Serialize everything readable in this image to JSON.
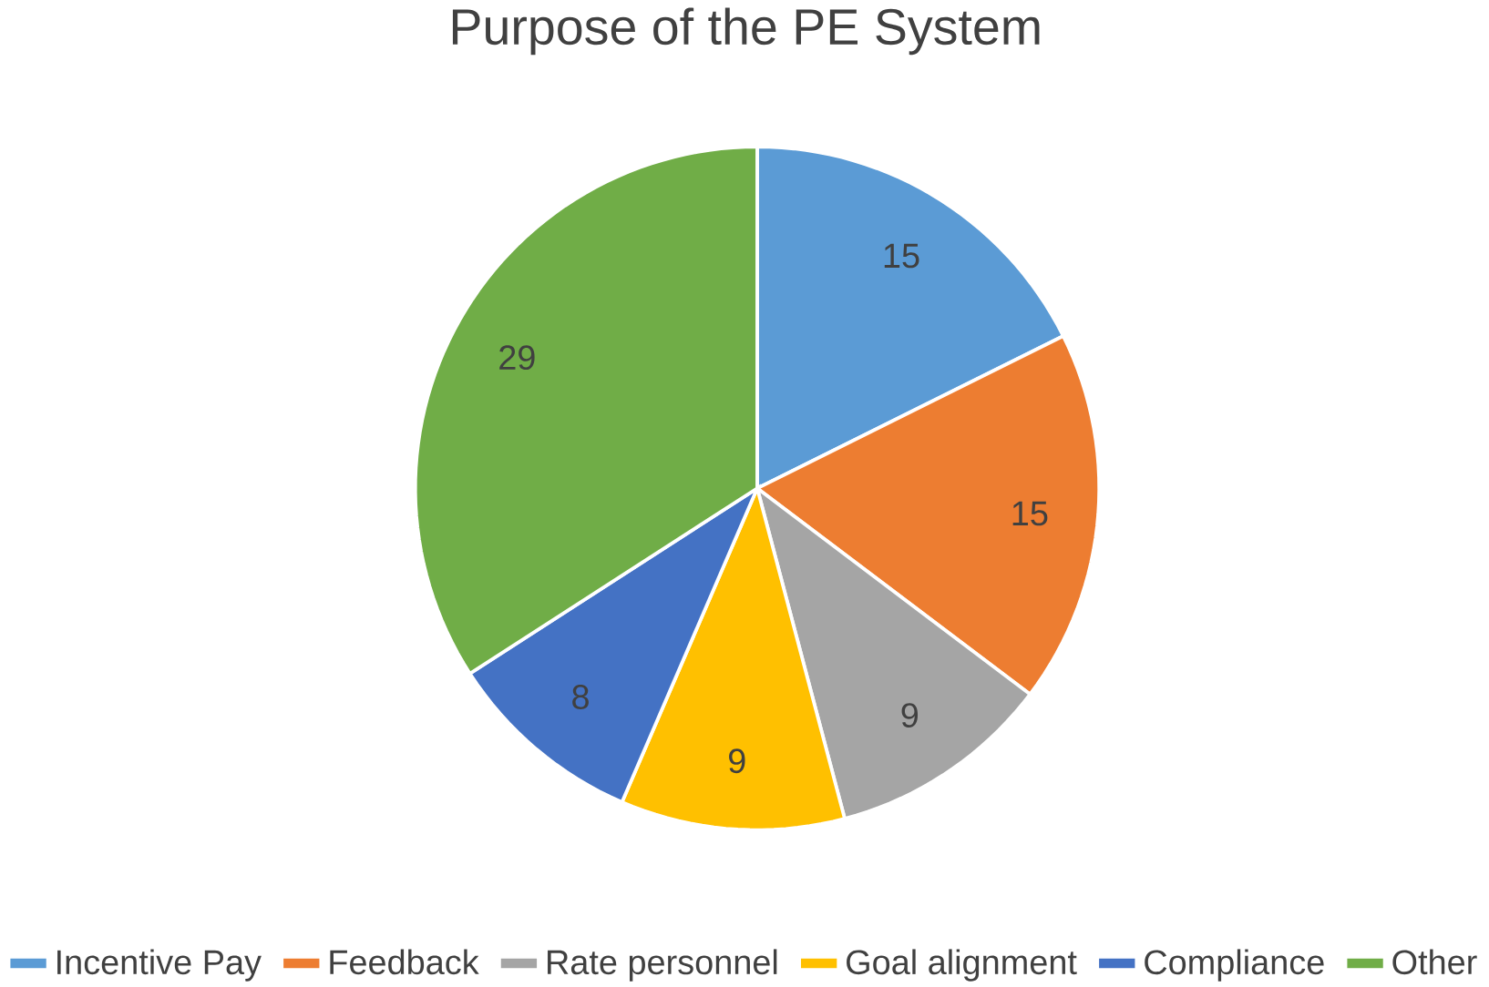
{
  "chart_data": {
    "type": "pie",
    "title": "Purpose of the PE System",
    "categories": [
      "Incentive Pay",
      "Feedback",
      "Rate personnel",
      "Goal alignment",
      "Compliance",
      "Other"
    ],
    "values": [
      15,
      15,
      9,
      9,
      8,
      29
    ],
    "colors": [
      "#5b9bd5",
      "#ed7d31",
      "#a5a5a5",
      "#ffc000",
      "#4472c4",
      "#70ad47"
    ],
    "data_labels": true,
    "legend": "bottom"
  }
}
